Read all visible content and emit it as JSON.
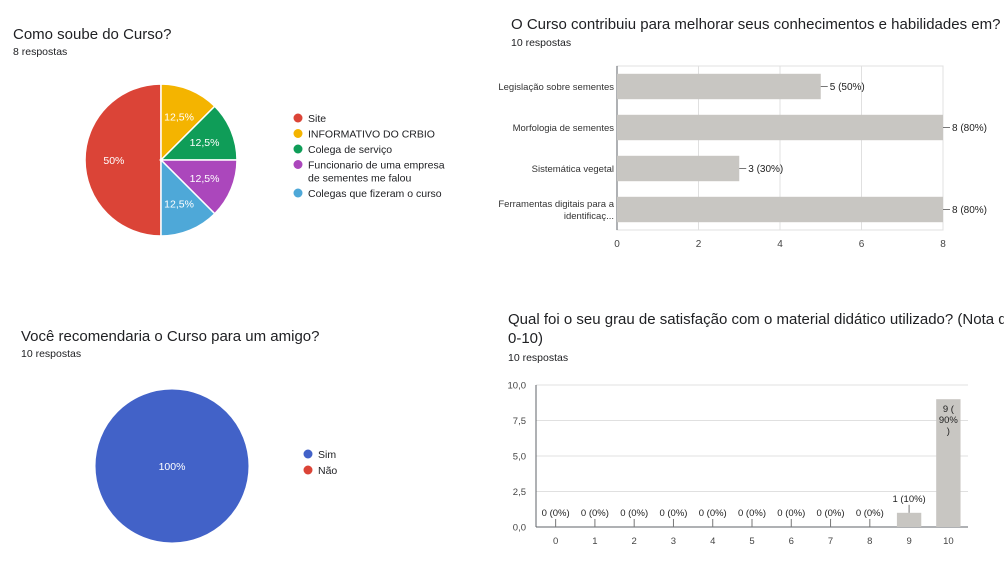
{
  "charts": [
    {
      "title": "Como soube do Curso?",
      "subtitle": "8 respostas",
      "chart_data": {
        "type": "pie",
        "labels": [
          "Site",
          "INFORMATIVO DO CRBIO",
          "Colega de serviço",
          "Funcionario de uma empresa de sementes me falou",
          "Colegas que fizeram o curso"
        ],
        "legend_lines": [
          [
            "Site"
          ],
          [
            "INFORMATIVO DO CRBIO"
          ],
          [
            "Colega de serviço"
          ],
          [
            "Funcionario de uma empresa",
            "de sementes me falou"
          ],
          [
            "Colegas que fizeram o curso"
          ]
        ],
        "values": [
          50,
          12.5,
          12.5,
          12.5,
          12.5
        ],
        "value_labels": [
          "50%",
          "12,5%",
          "12,5%",
          "12,5%",
          "12,5%"
        ],
        "colors": [
          "#db4437",
          "#f4b400",
          "#0f9d58",
          "#ab47bc",
          "#4ea8d8"
        ],
        "legend_position": "right"
      }
    },
    {
      "title": "O Curso contribuiu para melhorar seus conhecimentos e habilidades em?",
      "subtitle": "10 respostas",
      "chart_data": {
        "type": "bar",
        "orientation": "horizontal",
        "categories": [
          "Legislação sobre sementes",
          "Morfologia de sementes",
          "Sistemática vegetal",
          "Ferramentas digitais para a identificaç..."
        ],
        "category_lines": [
          [
            "Legislação sobre sementes"
          ],
          [
            "Morfologia de sementes"
          ],
          [
            "Sistemática vegetal"
          ],
          [
            "Ferramentas digitais para a",
            "identificaç..."
          ]
        ],
        "values": [
          5,
          8,
          3,
          8
        ],
        "value_labels": [
          "5 (50%)",
          "8 (80%)",
          "3 (30%)",
          "8 (80%)"
        ],
        "xlim": [
          0,
          8
        ],
        "ticks": [
          "0",
          "2",
          "4",
          "6",
          "8"
        ],
        "bar_color": "#c8c6c2",
        "grid": true
      }
    },
    {
      "title": "Você recomendaria o Curso para um amigo?",
      "subtitle": "10 respostas",
      "chart_data": {
        "type": "pie",
        "labels": [
          "Sim",
          "Não"
        ],
        "values": [
          100,
          0
        ],
        "value_labels": [
          "100%",
          ""
        ],
        "colors": [
          "#4262c8",
          "#db4437"
        ],
        "legend_position": "right"
      }
    },
    {
      "title_lines": [
        "Qual foi o seu grau de satisfação com o material didático utilizado? (Nota de",
        "0-10)"
      ],
      "subtitle": "10 respostas",
      "chart_data": {
        "type": "bar",
        "orientation": "vertical",
        "categories": [
          "0",
          "1",
          "2",
          "3",
          "4",
          "5",
          "6",
          "7",
          "8",
          "9",
          "10"
        ],
        "values": [
          0,
          0,
          0,
          0,
          0,
          0,
          0,
          0,
          0,
          1,
          9
        ],
        "value_labels": [
          "0 (0%)",
          "0 (0%)",
          "0 (0%)",
          "0 (0%)",
          "0 (0%)",
          "0 (0%)",
          "0 (0%)",
          "0 (0%)",
          "0 (0%)",
          "1 (10%)",
          "9 (90%)"
        ],
        "ylim": [
          0,
          10
        ],
        "ticks": [
          "0,0",
          "2,5",
          "5,0",
          "7,5",
          "10,0"
        ],
        "bar_color": "#c8c6c2",
        "grid": true
      }
    }
  ]
}
